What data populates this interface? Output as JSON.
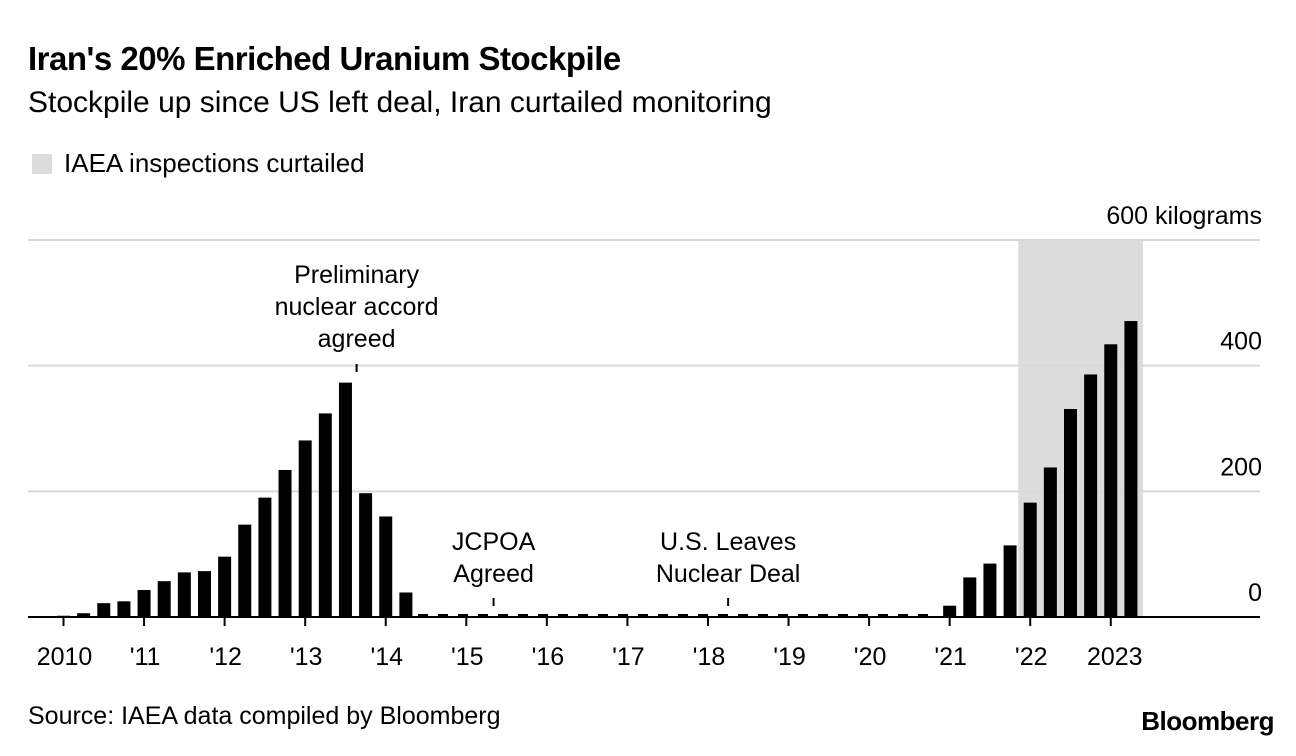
{
  "title": "Iran's 20% Enriched Uranium Stockpile",
  "subtitle": "Stockpile up since US left deal, Iran curtailed monitoring",
  "legend_label": "IAEA inspections curtailed",
  "source": "Source: IAEA data compiled by Bloomberg",
  "brand": "Bloomberg",
  "colors": {
    "bar": "#000000",
    "shade": "#dcdcdc",
    "grid": "#d9d9d9",
    "axis": "#000000"
  },
  "chart_data": {
    "type": "bar",
    "unit_label": "600 kilograms",
    "ylim": [
      0,
      600
    ],
    "yticks": [
      "0",
      "200",
      "400"
    ],
    "grid": true,
    "x_ticks": [
      "2010",
      "'11",
      "'12",
      "'13",
      "'14",
      "'15",
      "'16",
      "'17",
      "'18",
      "'19",
      "'20",
      "'21",
      "'22",
      "2023"
    ],
    "shaded_region": {
      "label": "IAEA inspections curtailed",
      "from_quarter": "2022 Q1",
      "to_quarter": "2023 Q2"
    },
    "categories": [
      "2010 Q1",
      "2010 Q2",
      "2010 Q3",
      "2010 Q4",
      "2011 Q1",
      "2011 Q2",
      "2011 Q3",
      "2011 Q4",
      "2012 Q1",
      "2012 Q2",
      "2012 Q3",
      "2012 Q4",
      "2013 Q1",
      "2013 Q2",
      "2013 Q3",
      "2013 Q4",
      "2014 Q1",
      "2014 Q2",
      "2014 Q3",
      "2014 Q4",
      "2015 Q1",
      "2015 Q2",
      "2015 Q3",
      "2015 Q4",
      "2016 Q1",
      "2016 Q2",
      "2016 Q3",
      "2016 Q4",
      "2017 Q1",
      "2017 Q2",
      "2017 Q3",
      "2017 Q4",
      "2018 Q1",
      "2018 Q2",
      "2018 Q3",
      "2018 Q4",
      "2019 Q1",
      "2019 Q2",
      "2019 Q3",
      "2019 Q4",
      "2020 Q1",
      "2020 Q2",
      "2020 Q3",
      "2020 Q4",
      "2021 Q1",
      "2021 Q2",
      "2021 Q3",
      "2021 Q4",
      "2022 Q1",
      "2022 Q2",
      "2022 Q3",
      "2022 Q4",
      "2023 Q1",
      "2023 Q2"
    ],
    "values": [
      2,
      6,
      22,
      25,
      43,
      57,
      71,
      73,
      96,
      147,
      190,
      234,
      281,
      324,
      373,
      197,
      160,
      39,
      0,
      0,
      0,
      0,
      0,
      0,
      0,
      0,
      0,
      0,
      0,
      0,
      0,
      0,
      0,
      0,
      0,
      0,
      0,
      0,
      0,
      0,
      0,
      0,
      0,
      0,
      18,
      63,
      85,
      114,
      182,
      238,
      331,
      386,
      434,
      471
    ],
    "annotations": [
      {
        "text": [
          "Preliminary",
          "nuclear accord",
          "agreed"
        ],
        "at_quarter": "2013 Q4"
      },
      {
        "text": [
          "JCPOA",
          "Agreed"
        ],
        "at_quarter": "2015 Q3"
      },
      {
        "text": [
          "U.S. Leaves",
          "Nuclear Deal"
        ],
        "at_quarter": "2018 Q2"
      }
    ]
  }
}
